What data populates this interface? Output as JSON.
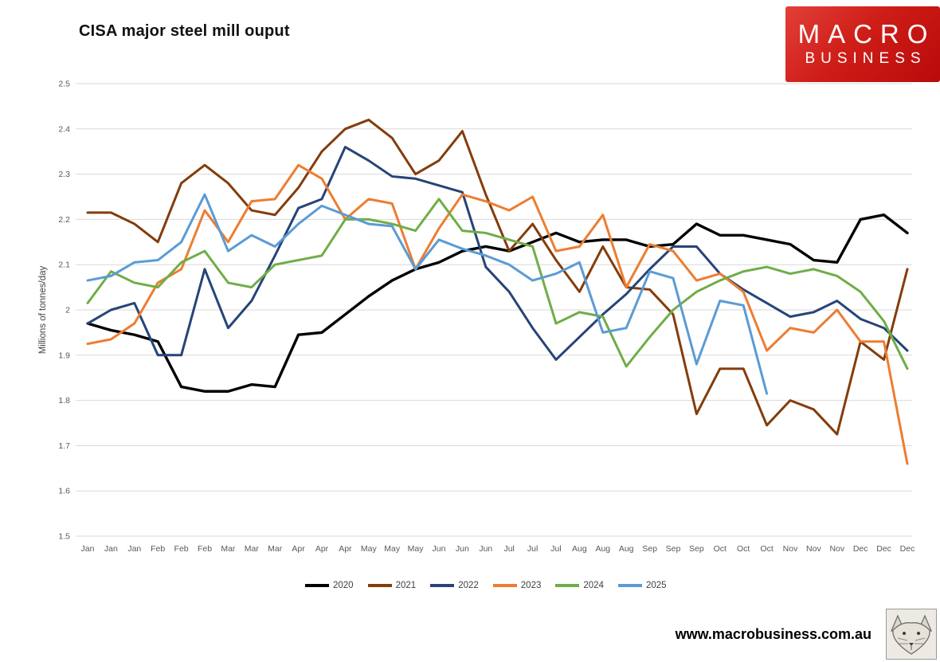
{
  "title": "CISA major steel mill ouput",
  "logo": {
    "line1": "MACRO",
    "line2": "BUSINESS",
    "bg_color": "#c81511"
  },
  "footer": {
    "url": "www.macrobusiness.com.au"
  },
  "chart_data": {
    "type": "line",
    "title": "CISA major steel mill ouput",
    "xlabel": "",
    "ylabel": "Millions of tonnes/day",
    "ylim": [
      1.5,
      2.5
    ],
    "ytick_labels": [
      "2.5",
      "2.4",
      "2.3",
      "2.2",
      "2.1",
      "2",
      "1.9",
      "1.8",
      "1.7",
      "1.6",
      "1.5"
    ],
    "grid": "horizontal",
    "gridline_color": "#d9d9d9",
    "tick_label_color": "#595959",
    "legend_position": "bottom",
    "categories": [
      "Jan",
      "Jan",
      "Jan",
      "Feb",
      "Feb",
      "Feb",
      "Mar",
      "Mar",
      "Mar",
      "Apr",
      "Apr",
      "Apr",
      "May",
      "May",
      "May",
      "Jun",
      "Jun",
      "Jun",
      "Jul",
      "Jul",
      "Jul",
      "Aug",
      "Aug",
      "Aug",
      "Sep",
      "Sep",
      "Sep",
      "Oct",
      "Oct",
      "Oct",
      "Nov",
      "Nov",
      "Nov",
      "Dec",
      "Dec",
      "Dec"
    ],
    "series": [
      {
        "name": "2020",
        "color": "#000000",
        "values": [
          1.97,
          1.955,
          1.945,
          1.93,
          1.83,
          1.82,
          1.82,
          1.835,
          1.83,
          1.945,
          1.95,
          1.99,
          2.03,
          2.065,
          2.09,
          2.105,
          2.13,
          2.14,
          2.13,
          2.15,
          2.17,
          2.15,
          2.155,
          2.155,
          2.14,
          2.145,
          2.19,
          2.165,
          2.165,
          2.155,
          2.145,
          2.11,
          2.105,
          2.2,
          2.21,
          2.17
        ]
      },
      {
        "name": "2021",
        "color": "#843C0C",
        "values": [
          2.215,
          2.215,
          2.19,
          2.15,
          2.28,
          2.32,
          2.28,
          2.22,
          2.21,
          2.27,
          2.35,
          2.4,
          2.42,
          2.38,
          2.3,
          2.33,
          2.395,
          2.255,
          2.13,
          2.19,
          2.11,
          2.04,
          2.14,
          2.05,
          2.045,
          1.99,
          1.77,
          1.87,
          1.87,
          1.745,
          1.8,
          1.78,
          1.725,
          1.93,
          1.89,
          2.09
        ]
      },
      {
        "name": "2022",
        "color": "#264478",
        "values": [
          1.97,
          2.0,
          2.015,
          1.9,
          1.9,
          2.09,
          1.96,
          2.02,
          2.12,
          2.225,
          2.245,
          2.36,
          2.33,
          2.295,
          2.29,
          2.275,
          2.26,
          2.095,
          2.04,
          1.96,
          1.89,
          1.94,
          1.99,
          2.035,
          2.09,
          2.14,
          2.14,
          2.08,
          2.045,
          2.015,
          1.985,
          1.995,
          2.02,
          1.98,
          1.96,
          1.91
        ]
      },
      {
        "name": "2023",
        "color": "#ED7D31",
        "values": [
          1.925,
          1.935,
          1.97,
          2.06,
          2.09,
          2.22,
          2.15,
          2.24,
          2.245,
          2.32,
          2.29,
          2.2,
          2.245,
          2.235,
          2.09,
          2.18,
          2.255,
          2.24,
          2.22,
          2.25,
          2.13,
          2.14,
          2.21,
          2.05,
          2.145,
          2.13,
          2.065,
          2.08,
          2.04,
          1.91,
          1.96,
          1.95,
          2.0,
          1.93,
          1.93,
          1.66
        ]
      },
      {
        "name": "2024",
        "color": "#70AD47",
        "values": [
          2.015,
          2.085,
          2.06,
          2.05,
          2.105,
          2.13,
          2.06,
          2.05,
          2.1,
          2.11,
          2.12,
          2.2,
          2.2,
          2.19,
          2.175,
          2.245,
          2.175,
          2.17,
          2.155,
          2.14,
          1.97,
          1.995,
          1.985,
          1.875,
          1.94,
          2.0,
          2.04,
          2.065,
          2.085,
          2.095,
          2.08,
          2.09,
          2.075,
          2.04,
          1.975,
          1.87
        ]
      },
      {
        "name": "2025",
        "color": "#5B9BD5",
        "values": [
          2.065,
          2.075,
          2.105,
          2.11,
          2.15,
          2.255,
          2.13,
          2.165,
          2.14,
          2.19,
          2.23,
          2.21,
          2.19,
          2.185,
          2.09,
          2.155,
          2.135,
          2.12,
          2.1,
          2.065,
          2.08,
          2.105,
          1.95,
          1.96,
          2.085,
          2.07,
          1.88,
          2.02,
          2.01,
          1.815
        ]
      }
    ]
  }
}
